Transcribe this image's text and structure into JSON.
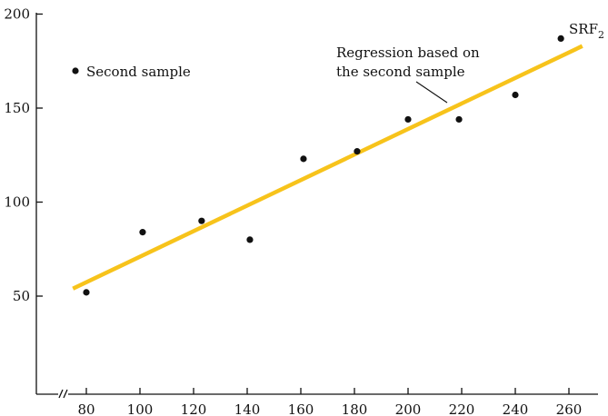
{
  "chart_data": {
    "type": "scatter",
    "title": "",
    "xlabel": "",
    "ylabel": "",
    "xlim": [
      62,
      272
    ],
    "ylim": [
      0,
      200
    ],
    "x_ticks": [
      80,
      100,
      120,
      140,
      160,
      180,
      200,
      220,
      240,
      260
    ],
    "y_ticks": [
      50,
      100,
      150,
      200
    ],
    "x_axis_break": true,
    "grid": false,
    "series": [
      {
        "name": "Second sample",
        "marker": "dot",
        "color": "#111111",
        "points": [
          {
            "x": 80,
            "y": 52
          },
          {
            "x": 101,
            "y": 84
          },
          {
            "x": 123,
            "y": 90
          },
          {
            "x": 141,
            "y": 80
          },
          {
            "x": 161,
            "y": 123
          },
          {
            "x": 181,
            "y": 127
          },
          {
            "x": 200,
            "y": 144
          },
          {
            "x": 219,
            "y": 144
          },
          {
            "x": 240,
            "y": 157
          },
          {
            "x": 257,
            "y": 187
          }
        ]
      }
    ],
    "regression_line": {
      "label_base": "SRF",
      "label_sub": "2",
      "color": "#F7C31B",
      "x": [
        75,
        265
      ],
      "y": [
        54,
        183
      ]
    },
    "legend": {
      "label": "Second sample",
      "placement": "top-left"
    },
    "annotation": {
      "lines": [
        "Regression based on",
        "the second sample"
      ]
    }
  }
}
